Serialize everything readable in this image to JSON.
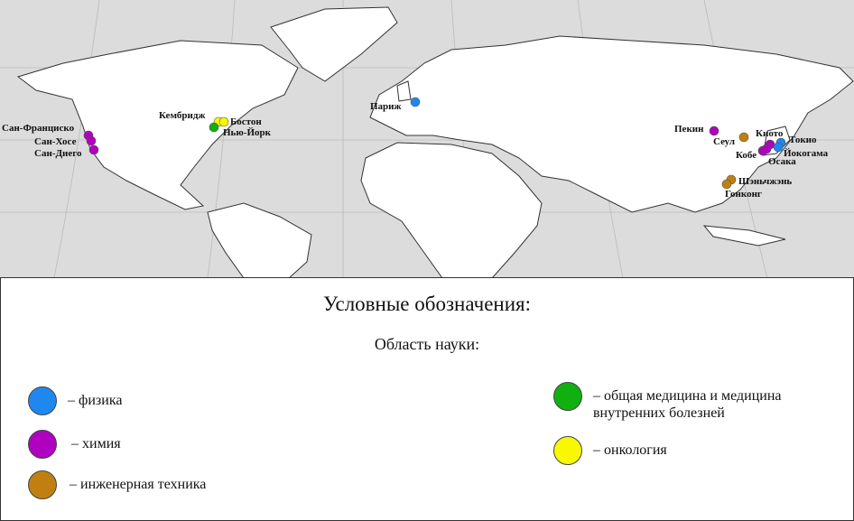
{
  "legend": {
    "title": "Условные обозначения:",
    "subtitle": "Область науки:",
    "items": [
      {
        "key": "physics",
        "label": "– физика",
        "color": "#1e88f0"
      },
      {
        "key": "chemistry",
        "label": "– химия",
        "color": "#b000c0"
      },
      {
        "key": "engineering",
        "label": "– инженерная техника",
        "color": "#c08010"
      },
      {
        "key": "medicine",
        "label": "– общая медицина и медицина внутренних болезней",
        "color": "#10b010"
      },
      {
        "key": "oncology",
        "label": "– онкология",
        "color": "#f8f800"
      }
    ]
  },
  "cities": [
    {
      "name": "Сан-Франциско",
      "field": "chemistry"
    },
    {
      "name": "Сан-Хосе",
      "field": "chemistry"
    },
    {
      "name": "Сан-Диего",
      "field": "chemistry"
    },
    {
      "name": "Кембридж",
      "field": "oncology"
    },
    {
      "name": "Бостон",
      "field": "oncology"
    },
    {
      "name": "Нью-Йорк",
      "field": "medicine"
    },
    {
      "name": "Париж",
      "field": "physics"
    },
    {
      "name": "Пекин",
      "field": "chemistry"
    },
    {
      "name": "Сеул",
      "field": "engineering"
    },
    {
      "name": "Киото",
      "field": "chemistry"
    },
    {
      "name": "Кобе",
      "field": "chemistry"
    },
    {
      "name": "Осака",
      "field": "chemistry"
    },
    {
      "name": "Токио",
      "field": "physics"
    },
    {
      "name": "Йокогама",
      "field": "physics"
    },
    {
      "name": "Шэньчжэнь",
      "field": "engineering"
    },
    {
      "name": "Гонконг",
      "field": "engineering"
    }
  ],
  "colors": {
    "ocean": "#dcdcdc",
    "land": "#ffffff",
    "border": "#333333"
  }
}
